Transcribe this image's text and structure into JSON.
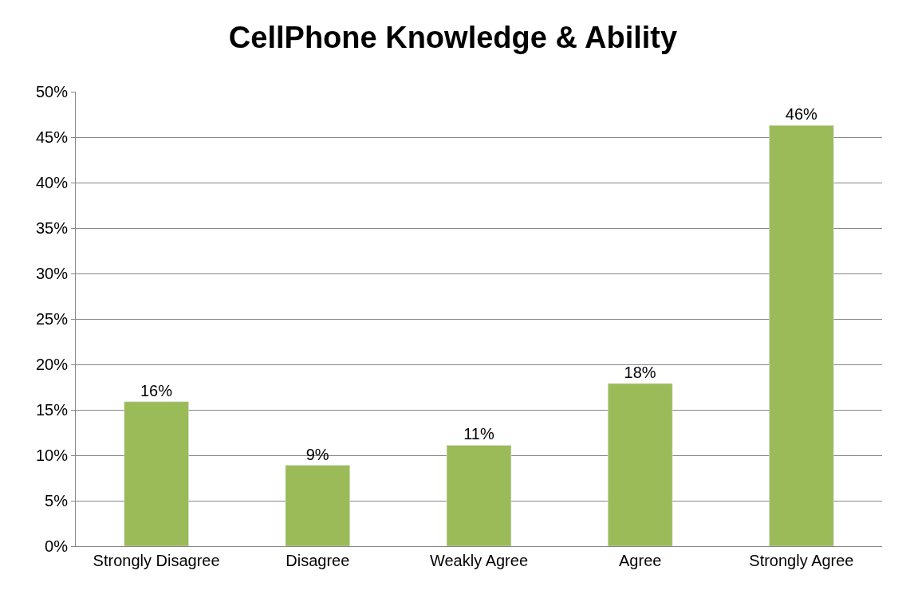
{
  "chart_data": {
    "type": "bar",
    "title": "CellPhone Knowledge & Ability",
    "categories": [
      "Strongly Disagree",
      "Disagree",
      "Weakly Agree",
      "Agree",
      "Strongly Agree"
    ],
    "values": [
      15.9,
      8.9,
      11.1,
      17.9,
      46.3
    ],
    "value_labels": [
      "16%",
      "9%",
      "11%",
      "18%",
      "46%"
    ],
    "color": "#9bbb59",
    "ylim": [
      0,
      50
    ],
    "yticks": [
      {
        "value": 0,
        "label": "0%"
      },
      {
        "value": 5,
        "label": "5%"
      },
      {
        "value": 10,
        "label": "10%"
      },
      {
        "value": 15,
        "label": "15%"
      },
      {
        "value": 20,
        "label": "20%"
      },
      {
        "value": 25,
        "label": "25%"
      },
      {
        "value": 30,
        "label": "30%"
      },
      {
        "value": 35,
        "label": "35%"
      },
      {
        "value": 40,
        "label": "40%"
      },
      {
        "value": 45,
        "label": "45%"
      },
      {
        "value": 50,
        "label": "50%"
      }
    ],
    "grid": "y"
  }
}
